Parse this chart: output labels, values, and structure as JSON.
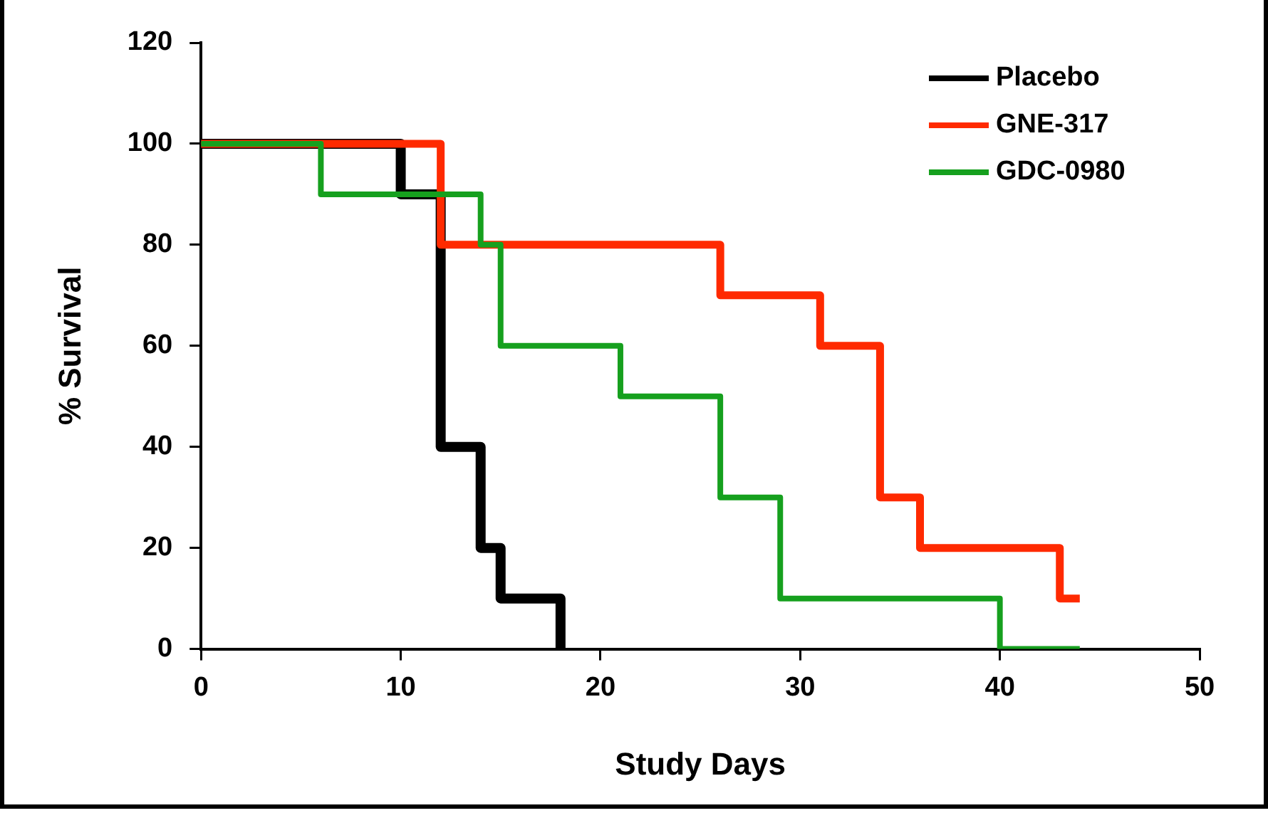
{
  "chart_data": {
    "type": "step",
    "xlabel": "Study Days",
    "ylabel": "% Survival",
    "xlim": [
      0,
      50
    ],
    "xticks": [
      0,
      10,
      20,
      30,
      40,
      50
    ],
    "ylim": [
      0,
      120
    ],
    "yticks": [
      0,
      20,
      40,
      60,
      80,
      100,
      120
    ],
    "grid": false,
    "legend": "top right",
    "line_style": "solid",
    "marker": "none",
    "series": [
      {
        "name": "Placebo",
        "color": "#000000",
        "x": [
          0,
          10,
          12,
          14,
          15,
          18
        ],
        "values": [
          100,
          90,
          40,
          20,
          10,
          0
        ]
      },
      {
        "name": "GNE-317",
        "color": "#ff2a00",
        "x": [
          0,
          12,
          26,
          31,
          34,
          36,
          43,
          44
        ],
        "values": [
          100,
          80,
          70,
          60,
          30,
          20,
          10,
          10
        ]
      },
      {
        "name": "GDC-0980",
        "color": "#16a01e",
        "x": [
          0,
          6,
          14,
          15,
          21,
          26,
          29,
          40,
          44
        ],
        "values": [
          100,
          90,
          80,
          60,
          50,
          30,
          10,
          0,
          0
        ]
      }
    ]
  }
}
